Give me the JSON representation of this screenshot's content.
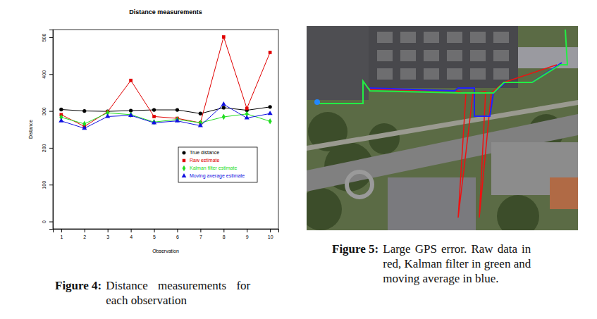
{
  "chart_data": {
    "type": "line",
    "title": "Distance measurements",
    "x_label": "Observation",
    "y_label": "Distance",
    "x": [
      1,
      2,
      3,
      4,
      5,
      6,
      7,
      8,
      9,
      10
    ],
    "series": [
      {
        "name": "True distance",
        "color": "#000000",
        "marker": "circle",
        "values": [
          304,
          300,
          299,
          301,
          303,
          303,
          293,
          309,
          302,
          311
        ]
      },
      {
        "name": "Raw estimate",
        "color": "#e00000",
        "marker": "square",
        "values": [
          290,
          258,
          298,
          383,
          285,
          280,
          268,
          501,
          307,
          459
        ]
      },
      {
        "name": "Kalman filter estimate",
        "color": "#22dd22",
        "marker": "diamond",
        "values": [
          283,
          265,
          295,
          290,
          270,
          277,
          268,
          284,
          292,
          272
        ]
      },
      {
        "name": "Moving average estimate",
        "color": "#1010e0",
        "marker": "triangle",
        "values": [
          273,
          253,
          285,
          288,
          268,
          273,
          260,
          318,
          281,
          293
        ]
      }
    ],
    "xlim": [
      0.64,
      10.36
    ],
    "xticks": [
      1,
      2,
      3,
      4,
      5,
      6,
      7,
      8,
      9,
      10
    ],
    "ylim": [
      -20,
      521
    ],
    "yticks": [
      0,
      100,
      200,
      300,
      400,
      500
    ],
    "grid": false,
    "legend": "right"
  },
  "captions": [
    {
      "label": "Figure 4:",
      "text": "Distance measurements for each observation"
    },
    {
      "label": "Figure 5:",
      "text": "Large GPS error. Raw data in red, Kalman filter in green and moving average in blue."
    }
  ]
}
